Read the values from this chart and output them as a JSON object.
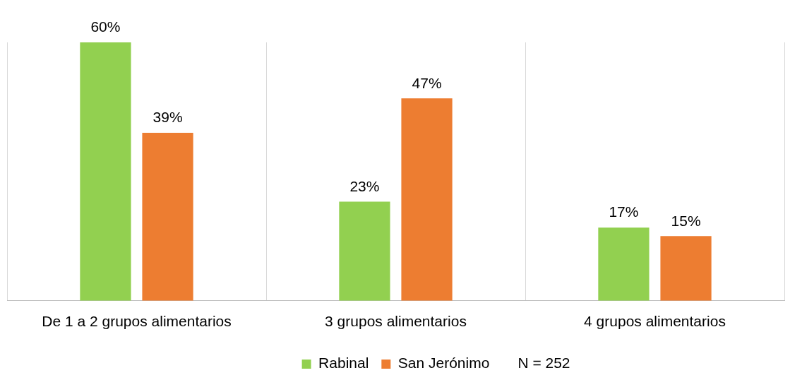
{
  "chart_data": {
    "type": "bar",
    "categories": [
      "De 1 a 2 grupos alimentarios",
      "3 grupos alimentarios",
      "4 grupos alimentarios"
    ],
    "series": [
      {
        "name": "Rabinal",
        "color": "#92d050",
        "values": [
          60,
          23,
          17
        ],
        "value_labels": [
          "60%",
          "23%",
          "17%"
        ]
      },
      {
        "name": "San Jerónimo",
        "color": "#ed7d31",
        "values": [
          39,
          47,
          15
        ],
        "value_labels": [
          "39%",
          "47%",
          "15%"
        ]
      }
    ],
    "tick_labels": "x",
    "grid": "x",
    "legend": "bottom",
    "annotations": [
      "N = 252"
    ]
  }
}
